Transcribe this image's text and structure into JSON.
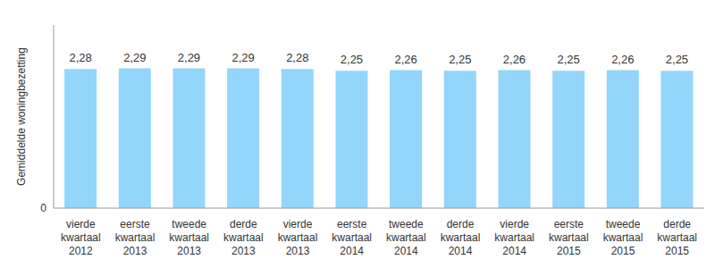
{
  "chart_data": {
    "type": "bar",
    "y_label": "Gemiddelde woningbezetting",
    "categories": [
      "vierde kwartaal 2012",
      "eerste kwartaal 2013",
      "tweede kwartaal 2013",
      "derde kwartaal 2013",
      "vierde kwartaal 2013",
      "eerste kwartaal 2014",
      "tweede kwartaal 2014",
      "derde kwartaal 2014",
      "vierde kwartaal 2014",
      "eerste kwartaal 2015",
      "tweede kwartaal 2015",
      "derde kwartaal 2015"
    ],
    "values": [
      2.28,
      2.29,
      2.29,
      2.29,
      2.28,
      2.25,
      2.26,
      2.25,
      2.26,
      2.25,
      2.26,
      2.25
    ],
    "value_labels": [
      "2,28",
      "2,29",
      "2,29",
      "2,29",
      "2,28",
      "2,25",
      "2,26",
      "2,25",
      "2,26",
      "2,25",
      "2,26",
      "2,25"
    ],
    "data_labels": true,
    "color": "#93d5fb",
    "ylim": [
      0,
      3
    ],
    "yticks": [
      0
    ]
  }
}
